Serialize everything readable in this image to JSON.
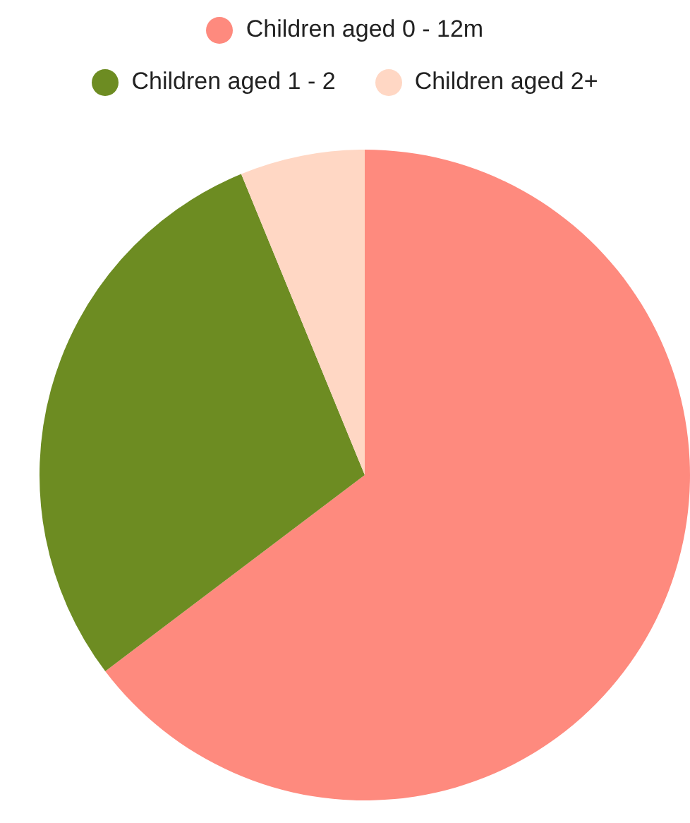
{
  "chart_data": {
    "type": "pie",
    "categories": [
      "Children aged 0 - 12m",
      "Children aged 1 - 2",
      "Children aged 2+"
    ],
    "values": [
      64.7,
      29.1,
      6.2
    ],
    "colors": [
      "#fe8a7e",
      "#6d8c22",
      "#ffd7c4"
    ],
    "legend": "top"
  }
}
